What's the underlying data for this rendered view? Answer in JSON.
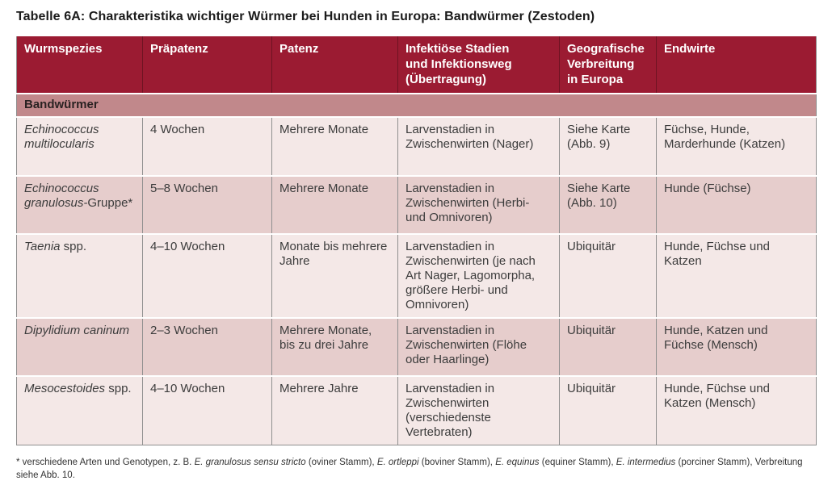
{
  "title": "Tabelle 6A: Charakteristika wichtiger Würmer bei Hunden in Europa: Bandwürmer (Zestoden)",
  "colors": {
    "header_bg": "#9B1B32",
    "section_bg": "#C1888B",
    "row_light": "#F4E8E7",
    "row_dark": "#E6CDCC",
    "border_gray": "#8F8F8F",
    "text": "#3C3C3C"
  },
  "table": {
    "headers": {
      "col1": "Wurmspezies",
      "col2": "Präpatenz",
      "col3": "Patenz",
      "col4": "Infektiöse Stadien\nund Infektionsweg\n(Übertragung)",
      "col5": "Geografische\nVerbreitung\nin Europa",
      "col6": "Endwirte"
    },
    "section_label": "Bandwürmer",
    "rows": [
      {
        "species_italic": "Echinococcus multilocularis",
        "species_regular": "",
        "praepatenz": "4 Wochen",
        "patenz": "Mehrere Monate",
        "infektion": "Larvenstadien in Zwischenwirten (Nager)",
        "verbreitung": "Siehe Karte (Abb. 9)",
        "endwirte": "Füchse, Hunde, Marderhunde (Katzen)"
      },
      {
        "species_italic": "Echinococcus granulosus-",
        "species_regular": "Gruppe*",
        "praepatenz": "5–8 Wochen",
        "patenz": "Mehrere Monate",
        "infektion": "Larvenstadien in Zwischenwirten (Herbi- und Omnivoren)",
        "verbreitung": "Siehe Karte (Abb. 10)",
        "endwirte": "Hunde (Füchse)"
      },
      {
        "species_italic": "Taenia",
        "species_regular": " spp.",
        "praepatenz": "4–10 Wochen",
        "patenz": "Monate bis mehrere Jahre",
        "infektion": "Larvenstadien in Zwischenwirten (je nach Art Nager, Lagomorpha, größere Herbi- und Omnivoren)",
        "verbreitung": "Ubiquitär",
        "endwirte": "Hunde, Füchse und Katzen"
      },
      {
        "species_italic": "Dipylidium caninum",
        "species_regular": "",
        "praepatenz": "2–3 Wochen",
        "patenz": "Mehrere Monate, bis zu drei Jahre",
        "infektion": "Larvenstadien in Zwischenwirten (Flöhe oder Haarlinge)",
        "verbreitung": "Ubiquitär",
        "endwirte": "Hunde, Katzen und Füchse (Mensch)"
      },
      {
        "species_italic": "Mesocestoides",
        "species_regular": " spp.",
        "praepatenz": "4–10 Wochen",
        "patenz": "Mehrere Jahre",
        "infektion": "Larvenstadien in Zwischenwirten (verschiedenste Vertebraten)",
        "verbreitung": "Ubiquitär",
        "endwirte": "Hunde, Füchse und Katzen (Mensch)"
      }
    ]
  },
  "footnote_segments": [
    {
      "text": "* verschiedene Arten und Genotypen, z. B. ",
      "italic": false
    },
    {
      "text": "E. granulosus sensu stricto",
      "italic": true
    },
    {
      "text": " (oviner Stamm), ",
      "italic": false
    },
    {
      "text": "E. ortleppi",
      "italic": true
    },
    {
      "text": " (boviner Stamm), ",
      "italic": false
    },
    {
      "text": "E. equinus",
      "italic": true
    },
    {
      "text": " (equiner Stamm), ",
      "italic": false
    },
    {
      "text": "E. intermedius",
      "italic": true
    },
    {
      "text": " (porciner Stamm), Verbreitung siehe Abb. 10.",
      "italic": false
    }
  ]
}
